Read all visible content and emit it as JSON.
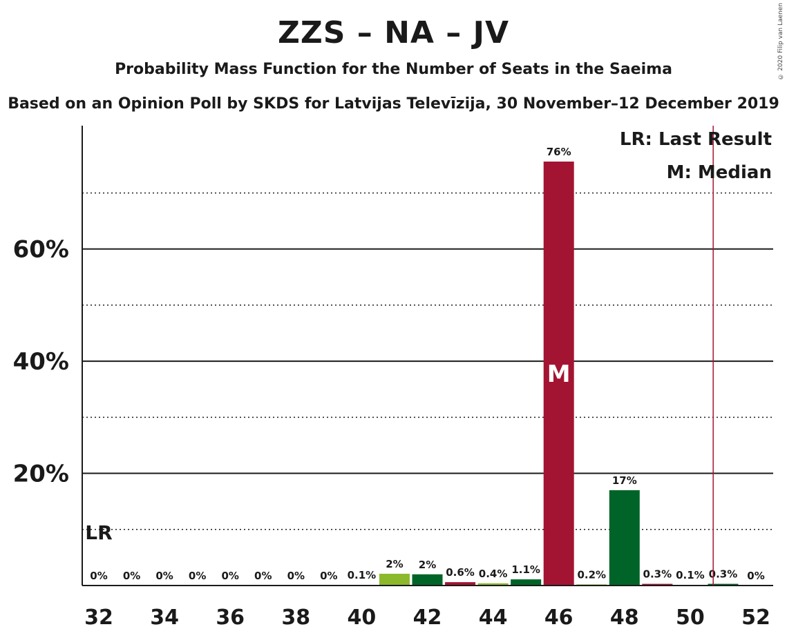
{
  "chart_data": {
    "type": "bar",
    "title": "ZZS – NA – JV",
    "subtitle": "Probability Mass Function for the Number of Seats in the Saeima",
    "subtitle2": "Based on an Opinion Poll by SKDS for Latvijas Televīzija, 30 November–12 December 2019",
    "copyright": "© 2020 Filip van Laenen",
    "x": [
      32,
      33,
      34,
      35,
      36,
      37,
      38,
      39,
      40,
      41,
      42,
      43,
      44,
      45,
      46,
      47,
      48,
      49,
      50,
      51,
      52
    ],
    "values": [
      0,
      0,
      0,
      0,
      0,
      0,
      0,
      0,
      0.1,
      2.1,
      2.0,
      0.6,
      0.4,
      1.1,
      75.6,
      0.2,
      17.0,
      0.3,
      0.1,
      0.3,
      0
    ],
    "value_labels": [
      "0%",
      "0%",
      "0%",
      "0%",
      "0%",
      "0%",
      "0%",
      "0%",
      "0.1%",
      "2%",
      "2%",
      "0.6%",
      "0.4%",
      "1.1%",
      "76%",
      "0.2%",
      "17%",
      "0.3%",
      "0.1%",
      "0.3%",
      "0%"
    ],
    "bar_colors": [
      "#8cb82b",
      "#8cb82b",
      "#8cb82b",
      "#8cb82b",
      "#8cb82b",
      "#8cb82b",
      "#8cb82b",
      "#8cb82b",
      "#8cb82b",
      "#8cb82b",
      "#006428",
      "#a31432",
      "#8cb82b",
      "#006428",
      "#a31432",
      "#8cb82b",
      "#006428",
      "#a31432",
      "#8cb82b",
      "#006428",
      "#a31432"
    ],
    "x_ticks": [
      32,
      34,
      36,
      38,
      40,
      42,
      44,
      46,
      48,
      50,
      52
    ],
    "x_tick_labels": [
      "32",
      "34",
      "36",
      "38",
      "40",
      "42",
      "44",
      "46",
      "48",
      "50",
      "52"
    ],
    "y_ticks": [
      20,
      40,
      60
    ],
    "y_tick_labels": [
      "20%",
      "40%",
      "60%"
    ],
    "ylim": [
      0,
      82
    ],
    "grid_solid": [
      20,
      40,
      60
    ],
    "grid_dotted": [
      10,
      30,
      50,
      70
    ],
    "last_result_seat": 32,
    "last_result_label": "LR",
    "median_seat": 46,
    "median_label": "M",
    "marker_line_x": 50.7,
    "marker_line_color": "#a31432",
    "legend": [
      "LR: Last Result",
      "M: Median"
    ],
    "legend_position": "top-right"
  }
}
